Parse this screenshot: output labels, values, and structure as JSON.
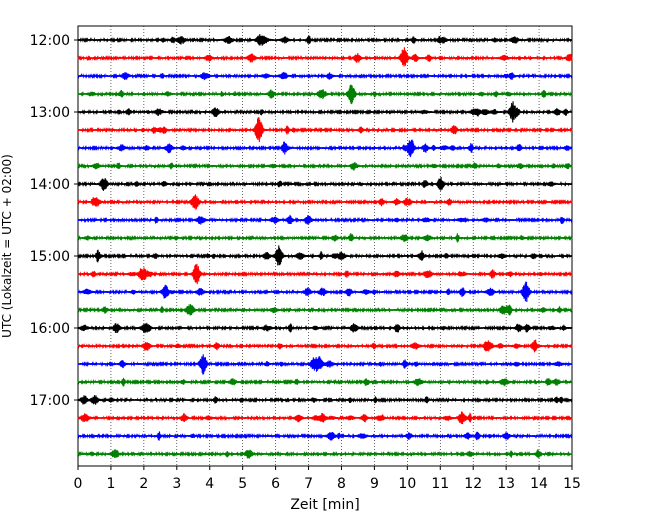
{
  "chart_data": {
    "type": "line",
    "title": "",
    "xlabel": "Zeit  [min]",
    "ylabel": "UTC (Lokalzeit = UTC + 02:00)",
    "xlim": [
      0,
      15
    ],
    "x_ticks": [
      "0",
      "1",
      "2",
      "3",
      "4",
      "5",
      "6",
      "7",
      "8",
      "9",
      "10",
      "11",
      "12",
      "13",
      "14",
      "15"
    ],
    "y_ticks": [
      "12:00",
      "13:00",
      "14:00",
      "15:00",
      "16:00",
      "17:00"
    ],
    "trace_interval_minutes": 15,
    "trace_count": 24,
    "start_time": "12:00",
    "end_time": "17:45",
    "color_cycle": [
      "#000000",
      "#ff0000",
      "#0000ff",
      "#008000"
    ],
    "grid": "vertical dotted",
    "legend": "none",
    "notable_events": [
      {
        "trace": "12:15",
        "minute": 9.9,
        "color": "red"
      },
      {
        "trace": "12:45",
        "minute": 8.3,
        "color": "green"
      },
      {
        "trace": "13:00",
        "minute": 13.2,
        "color": "black"
      },
      {
        "trace": "13:15",
        "minute": 5.5,
        "color": "red"
      },
      {
        "trace": "13:30",
        "minute": 10.1,
        "color": "blue"
      },
      {
        "trace": "15:00",
        "minute": 6.1,
        "color": "black"
      },
      {
        "trace": "15:15",
        "minute": 3.6,
        "color": "red"
      },
      {
        "trace": "15:30",
        "minute": 13.6,
        "color": "blue"
      },
      {
        "trace": "16:30",
        "minute": 3.8,
        "color": "blue"
      }
    ]
  }
}
